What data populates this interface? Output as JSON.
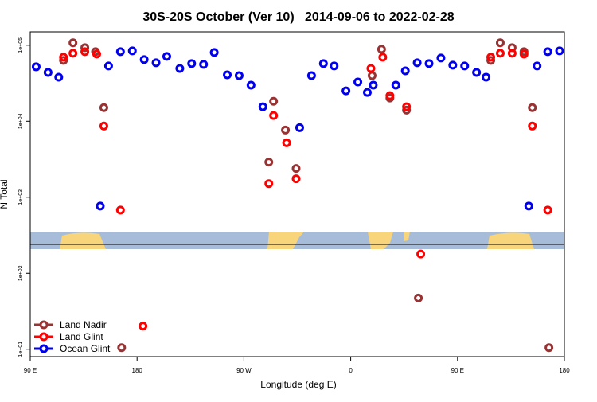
{
  "chart_data": {
    "type": "scatter",
    "title": "30S-20S October (Ver 10)   2014-09-06 to 2022-02-28",
    "x_label": "Longitude (deg E)",
    "y_label": "N Total",
    "xlim": [
      90,
      540
    ],
    "xticks": [
      {
        "value": 90,
        "label": "90 E"
      },
      {
        "value": 180,
        "label": "180"
      },
      {
        "value": 270,
        "label": "90 W"
      },
      {
        "value": 360,
        "label": "0"
      },
      {
        "value": 450,
        "label": "90 E"
      },
      {
        "value": 540,
        "label": "180"
      }
    ],
    "ylim": [
      8,
      150000
    ],
    "y_scale": "log",
    "yticks": [
      {
        "value": 10,
        "label": "1e+01"
      },
      {
        "value": 100,
        "label": "1e+02"
      },
      {
        "value": 1000,
        "label": "1e+03"
      },
      {
        "value": 10000,
        "label": "1e+04"
      },
      {
        "value": 100000,
        "label": "1e+05"
      }
    ],
    "legend": "lower left",
    "series": [
      {
        "name": "Land Nadir",
        "color": "#993333",
        "x": [
          118,
          126,
          136,
          145,
          152,
          167,
          291,
          295,
          305,
          314,
          378,
          386,
          393,
          407,
          417,
          478,
          486,
          496,
          506,
          513,
          527
        ],
        "values": [
          63100,
          107700,
          93000,
          82400,
          15100,
          10.5,
          2900,
          18300,
          7660,
          2390,
          39800,
          88600,
          20200,
          14000,
          47.2,
          63100,
          107700,
          93000,
          82400,
          15100,
          10.5
        ]
      },
      {
        "name": "Land Glint",
        "color": "#ff0000",
        "x": [
          118,
          126,
          136,
          146,
          152,
          166,
          185,
          291,
          295,
          306,
          314,
          377,
          387,
          393,
          407,
          419,
          478,
          486,
          496,
          506,
          513,
          526
        ],
        "values": [
          69600,
          78500,
          82400,
          76600,
          8650,
          679,
          20.2,
          1510,
          11900,
          5200,
          1750,
          49500,
          69600,
          21700,
          15500,
          179,
          69600,
          78500,
          78500,
          76600,
          8650,
          679
        ]
      },
      {
        "name": "Ocean Glint",
        "color": "#0000ee",
        "x": [
          95,
          105,
          114,
          149,
          156,
          166,
          176,
          186,
          196,
          205,
          216,
          226,
          236,
          245,
          256,
          266,
          276,
          286,
          317,
          327,
          337,
          346,
          356,
          366,
          374,
          379,
          398,
          406,
          416,
          426,
          436,
          446,
          456,
          466,
          474,
          510,
          517,
          526,
          536
        ],
        "values": [
          52000,
          43900,
          37900,
          766,
          53300,
          82400,
          84400,
          64700,
          58700,
          71300,
          49500,
          57300,
          55900,
          80400,
          40800,
          39800,
          29800,
          15500,
          8240,
          39800,
          57300,
          53300,
          25100,
          32800,
          23900,
          29800,
          29800,
          46000,
          58700,
          57300,
          67900,
          54600,
          53300,
          43900,
          37900,
          766,
          53300,
          82400,
          84400
        ]
      }
    ]
  }
}
